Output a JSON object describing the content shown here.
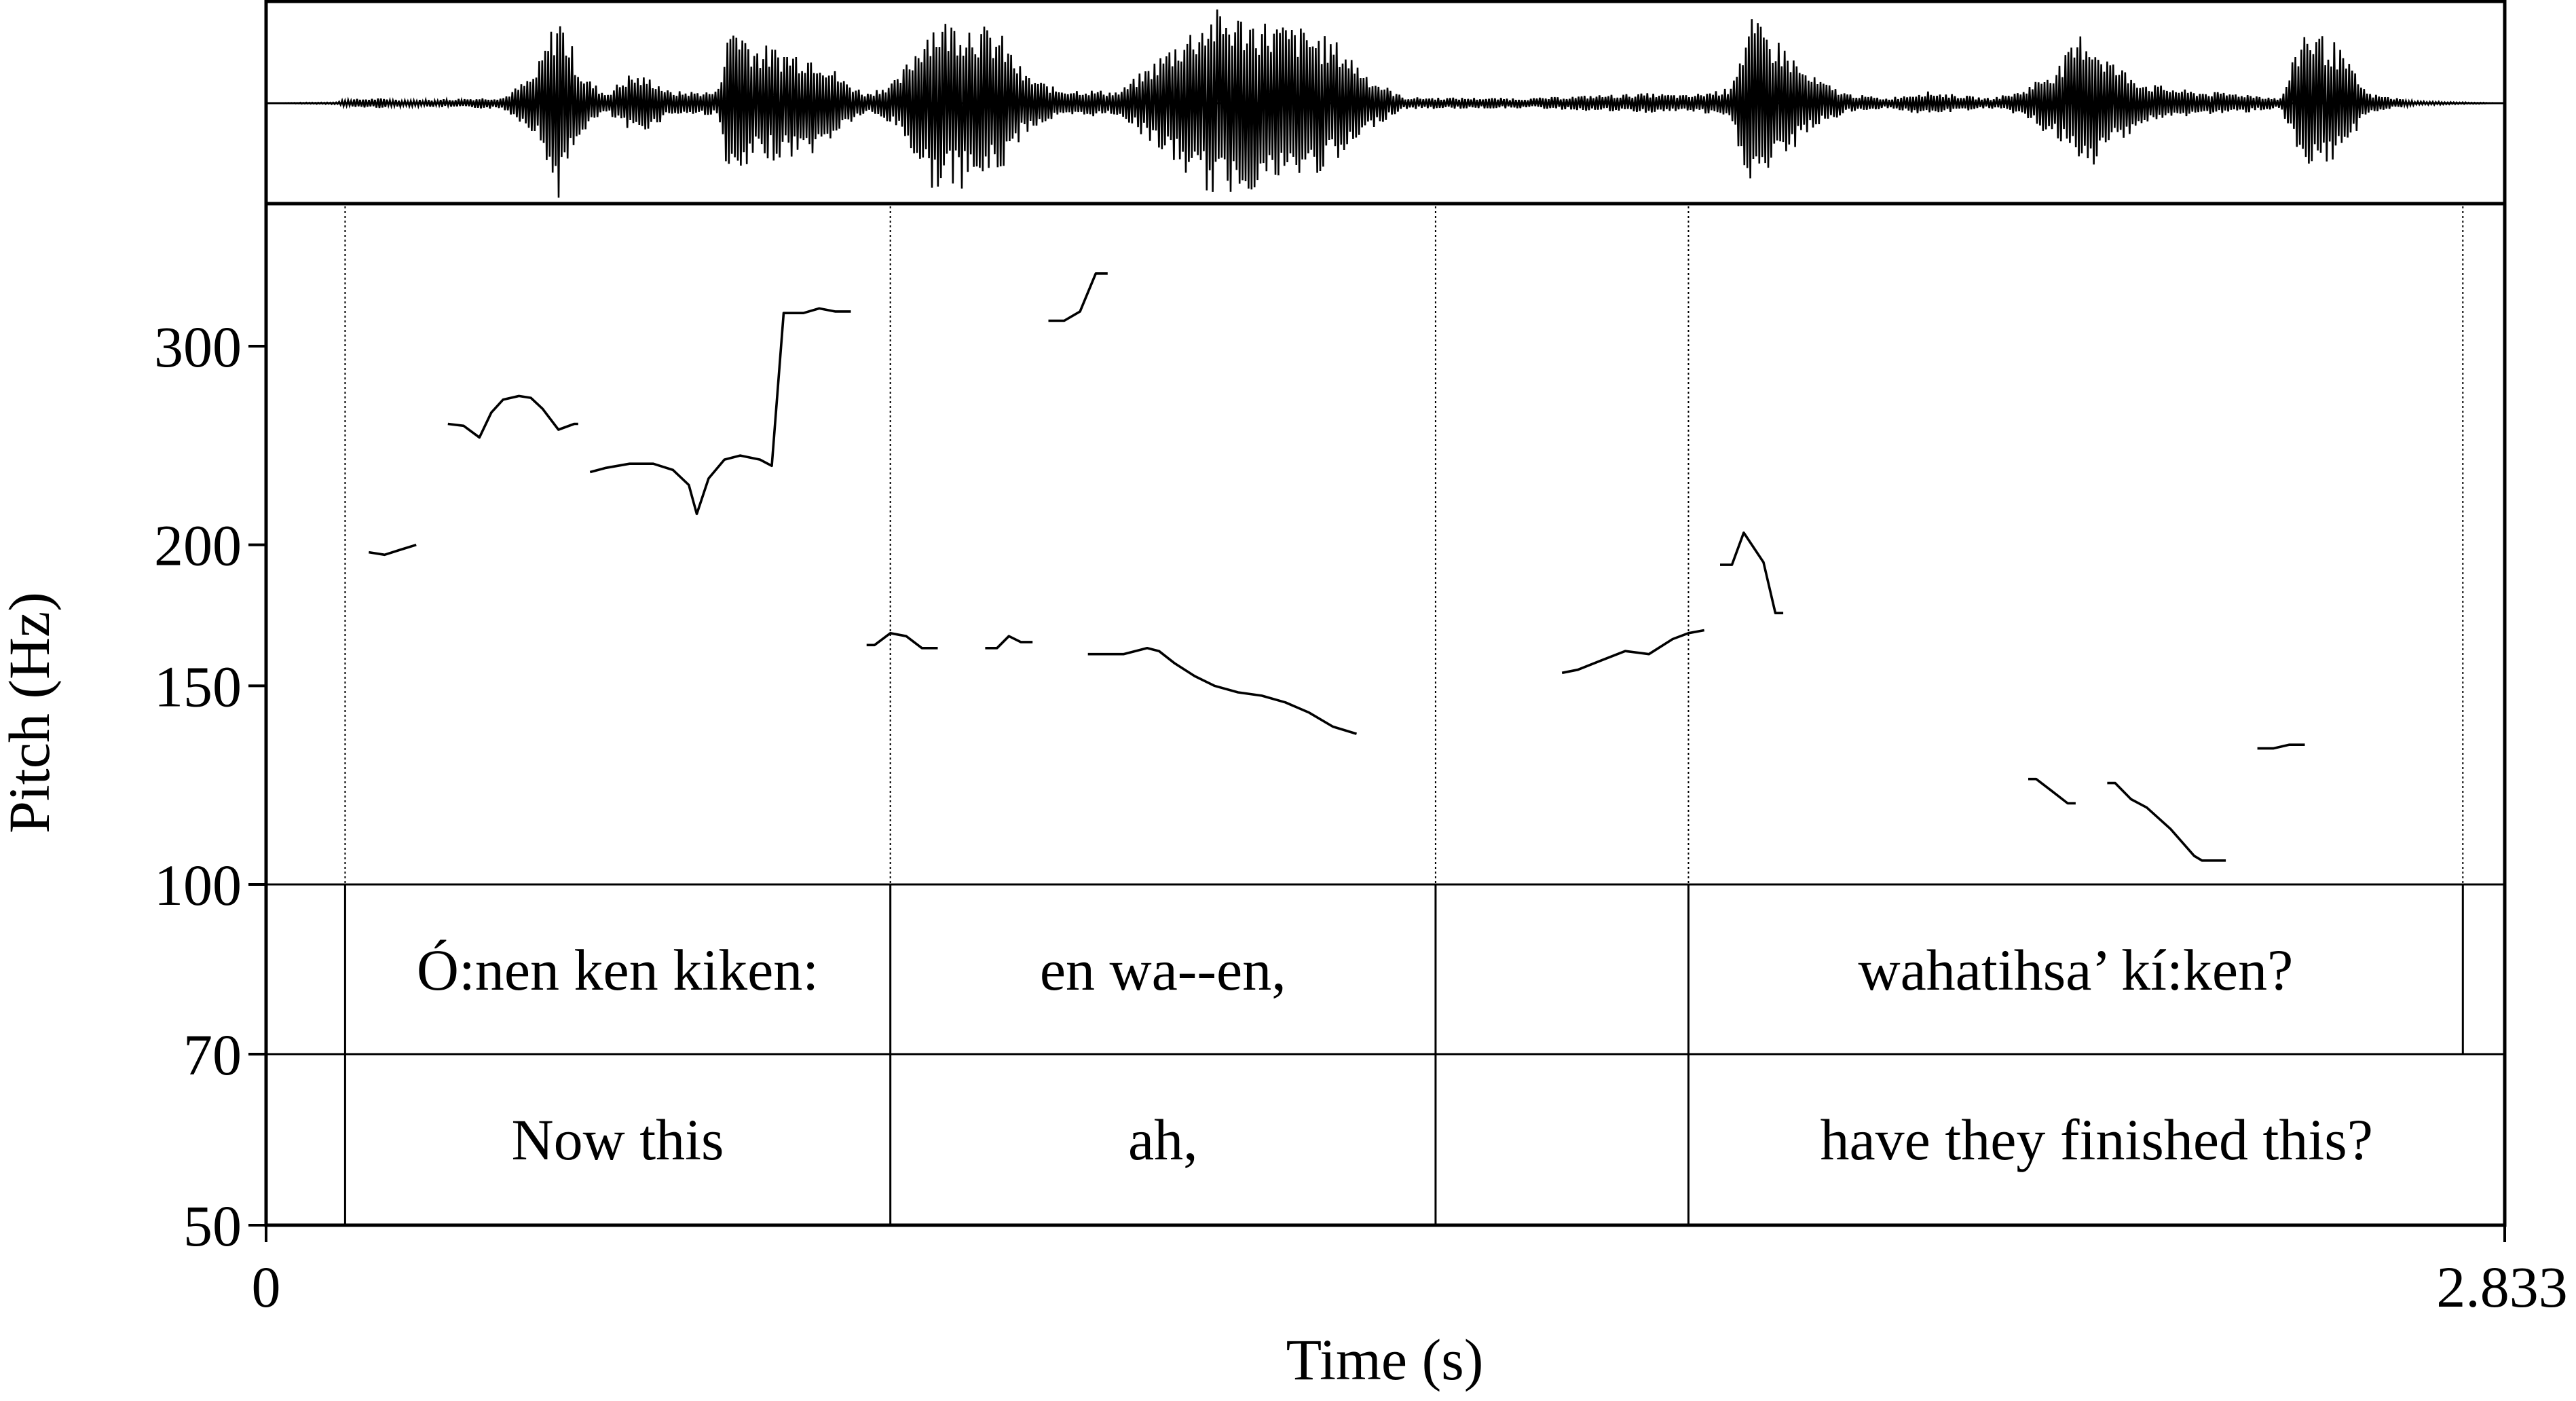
{
  "chart_data": {
    "type": "line",
    "xlabel": "Time (s)",
    "ylabel": "Pitch (Hz)",
    "xlim": [
      0,
      2.833
    ],
    "x_ticks": [
      "0",
      "2.833"
    ],
    "y_ticks": [
      {
        "label": "300",
        "value": 300
      },
      {
        "label": "200",
        "value": 200
      },
      {
        "label": "150",
        "value": 150
      },
      {
        "label": "100",
        "value": 100
      },
      {
        "label": "70",
        "value": 70
      },
      {
        "label": "50",
        "value": 50
      }
    ],
    "pitch_range_hz": [
      100,
      400
    ],
    "y_scale": "log",
    "waveform_envelope": [
      [
        0.0,
        0.0
      ],
      [
        0.09,
        0.01
      ],
      [
        0.1,
        0.04
      ],
      [
        0.14,
        0.05
      ],
      [
        0.18,
        0.03
      ],
      [
        0.3,
        0.06
      ],
      [
        0.34,
        0.3
      ],
      [
        0.37,
        0.95
      ],
      [
        0.4,
        0.3
      ],
      [
        0.43,
        0.1
      ],
      [
        0.46,
        0.3
      ],
      [
        0.49,
        0.25
      ],
      [
        0.51,
        0.12
      ],
      [
        0.57,
        0.12
      ],
      [
        0.59,
        0.9
      ],
      [
        0.62,
        0.6
      ],
      [
        0.66,
        0.55
      ],
      [
        0.7,
        0.5
      ],
      [
        0.73,
        0.25
      ],
      [
        0.76,
        0.1
      ],
      [
        0.8,
        0.25
      ],
      [
        0.84,
        0.85
      ],
      [
        0.89,
        0.85
      ],
      [
        0.93,
        0.7
      ],
      [
        0.96,
        0.3
      ],
      [
        1.0,
        0.15
      ],
      [
        1.08,
        0.12
      ],
      [
        1.12,
        0.4
      ],
      [
        1.16,
        0.7
      ],
      [
        1.2,
        0.95
      ],
      [
        1.26,
        0.85
      ],
      [
        1.32,
        0.75
      ],
      [
        1.36,
        0.6
      ],
      [
        1.4,
        0.25
      ],
      [
        1.44,
        0.06
      ],
      [
        1.6,
        0.05
      ],
      [
        1.68,
        0.08
      ],
      [
        1.75,
        0.1
      ],
      [
        1.8,
        0.08
      ],
      [
        1.85,
        0.15
      ],
      [
        1.88,
        0.85
      ],
      [
        1.92,
        0.6
      ],
      [
        1.95,
        0.3
      ],
      [
        2.0,
        0.1
      ],
      [
        2.05,
        0.05
      ],
      [
        2.1,
        0.12
      ],
      [
        2.18,
        0.05
      ],
      [
        2.22,
        0.12
      ],
      [
        2.27,
        0.4
      ],
      [
        2.3,
        0.75
      ],
      [
        2.34,
        0.4
      ],
      [
        2.38,
        0.2
      ],
      [
        2.44,
        0.12
      ],
      [
        2.5,
        0.1
      ],
      [
        2.55,
        0.05
      ],
      [
        2.58,
        0.8
      ],
      [
        2.62,
        0.6
      ],
      [
        2.66,
        0.1
      ],
      [
        2.72,
        0.02
      ],
      [
        2.833,
        0.0
      ]
    ],
    "pitch_segments": [
      [
        [
          0.13,
          197
        ],
        [
          0.15,
          196
        ],
        [
          0.17,
          198
        ],
        [
          0.19,
          200
        ]
      ],
      [
        [
          0.23,
          256
        ],
        [
          0.25,
          255
        ],
        [
          0.27,
          249
        ],
        [
          0.285,
          262
        ],
        [
          0.3,
          269
        ],
        [
          0.32,
          271
        ],
        [
          0.335,
          270
        ],
        [
          0.35,
          264
        ],
        [
          0.37,
          253
        ],
        [
          0.39,
          256
        ],
        [
          0.395,
          256
        ]
      ],
      [
        [
          0.41,
          232
        ],
        [
          0.43,
          234
        ],
        [
          0.46,
          236
        ],
        [
          0.49,
          236
        ],
        [
          0.515,
          233
        ],
        [
          0.535,
          226
        ],
        [
          0.545,
          213
        ],
        [
          0.56,
          229
        ],
        [
          0.58,
          238
        ],
        [
          0.6,
          240
        ],
        [
          0.625,
          238
        ],
        [
          0.64,
          235
        ],
        [
          0.655,
          321
        ],
        [
          0.68,
          321
        ],
        [
          0.7,
          324
        ],
        [
          0.72,
          322
        ],
        [
          0.74,
          322
        ]
      ]
    ],
    "pitch_segments_2": [
      [
        [
          0.76,
          163
        ],
        [
          0.77,
          163
        ],
        [
          0.79,
          167
        ],
        [
          0.81,
          166
        ],
        [
          0.83,
          162
        ],
        [
          0.85,
          162
        ]
      ],
      [
        [
          0.91,
          162
        ],
        [
          0.925,
          162
        ],
        [
          0.94,
          166
        ],
        [
          0.955,
          164
        ],
        [
          0.97,
          164
        ]
      ],
      [
        [
          0.99,
          316
        ],
        [
          1.01,
          316
        ],
        [
          1.03,
          322
        ],
        [
          1.05,
          348
        ],
        [
          1.065,
          348
        ]
      ],
      [
        [
          1.04,
          160
        ],
        [
          1.065,
          160
        ],
        [
          1.085,
          160
        ],
        [
          1.1,
          161
        ],
        [
          1.115,
          162
        ],
        [
          1.13,
          161
        ],
        [
          1.15,
          157
        ],
        [
          1.175,
          153
        ],
        [
          1.2,
          150
        ],
        [
          1.23,
          148
        ],
        [
          1.26,
          147
        ],
        [
          1.29,
          145
        ],
        [
          1.32,
          142
        ],
        [
          1.35,
          138
        ],
        [
          1.38,
          136
        ]
      ]
    ],
    "pitch_segments_3": [
      [
        [
          1.64,
          154
        ],
        [
          1.66,
          155
        ],
        [
          1.69,
          158
        ],
        [
          1.72,
          161
        ],
        [
          1.75,
          160
        ],
        [
          1.78,
          165
        ],
        [
          1.8,
          167
        ],
        [
          1.82,
          168
        ]
      ],
      [
        [
          1.84,
          192
        ],
        [
          1.855,
          192
        ],
        [
          1.87,
          205
        ],
        [
          1.895,
          193
        ],
        [
          1.91,
          174
        ],
        [
          1.92,
          174
        ]
      ],
      [
        [
          2.23,
          124
        ],
        [
          2.24,
          124
        ],
        [
          2.26,
          121
        ],
        [
          2.28,
          118
        ],
        [
          2.29,
          118
        ]
      ],
      [
        [
          2.33,
          123
        ],
        [
          2.34,
          123
        ],
        [
          2.36,
          119
        ],
        [
          2.38,
          117
        ],
        [
          2.41,
          112
        ],
        [
          2.44,
          106
        ],
        [
          2.45,
          105
        ],
        [
          2.48,
          105
        ]
      ],
      [
        [
          2.52,
          132
        ],
        [
          2.54,
          132
        ],
        [
          2.56,
          133
        ],
        [
          2.58,
          133
        ]
      ]
    ],
    "tiers": [
      {
        "boundaries": [
          0.1,
          0.79,
          1.48,
          1.8,
          2.78
        ],
        "intervals": [
          {
            "start": 0.1,
            "end": 0.79,
            "text": "Ó:nen ken kiken:"
          },
          {
            "start": 0.79,
            "end": 1.48,
            "text": "en wa--en,"
          },
          {
            "start": 1.48,
            "end": 1.8,
            "text": ""
          },
          {
            "start": 1.8,
            "end": 2.78,
            "text": "wahatihsa’ kí:ken?"
          }
        ]
      },
      {
        "boundaries": [
          0.1,
          0.79,
          1.48,
          1.8
        ],
        "intervals": [
          {
            "start": 0.1,
            "end": 0.79,
            "text": "Now this"
          },
          {
            "start": 0.79,
            "end": 1.48,
            "text": "ah,"
          },
          {
            "start": 1.48,
            "end": 1.8,
            "text": ""
          },
          {
            "start": 1.8,
            "end": 2.833,
            "text": "have they finished this?"
          }
        ]
      }
    ]
  }
}
